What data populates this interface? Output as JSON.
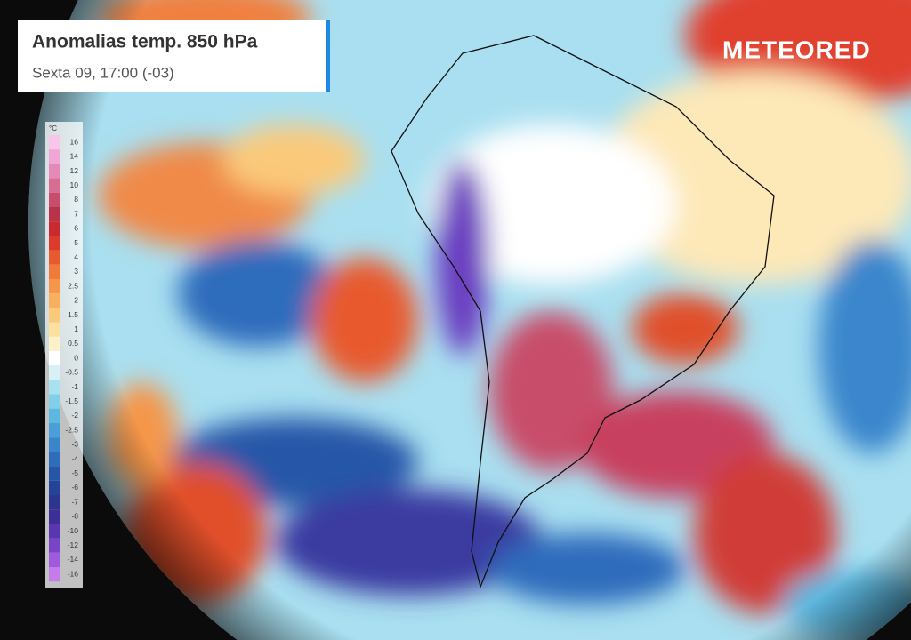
{
  "header": {
    "title": "Anomalias temp. 850 hPa",
    "subtitle": "Sexta 09, 17:00 (-03)"
  },
  "brand": "METEORED",
  "legend": {
    "unit": "°C",
    "steps": [
      {
        "value": 16,
        "color": "#f7c6e8"
      },
      {
        "value": 14,
        "color": "#f0a6d6"
      },
      {
        "value": 12,
        "color": "#e589b8"
      },
      {
        "value": 10,
        "color": "#d96c93"
      },
      {
        "value": 8,
        "color": "#c84d6b"
      },
      {
        "value": 7,
        "color": "#b8324a"
      },
      {
        "value": 6,
        "color": "#c82a30"
      },
      {
        "value": 5,
        "color": "#dc3a2a"
      },
      {
        "value": 4,
        "color": "#e85a2e"
      },
      {
        "value": 3,
        "color": "#f07a3a"
      },
      {
        "value": 2.5,
        "color": "#f5964a"
      },
      {
        "value": 2,
        "color": "#f8b060"
      },
      {
        "value": 1.5,
        "color": "#fbc97a"
      },
      {
        "value": 1,
        "color": "#fde0a0"
      },
      {
        "value": 0.5,
        "color": "#fef0c8"
      },
      {
        "value": 0,
        "color": "#ffffff"
      },
      {
        "value": -0.5,
        "color": "#d6f2f6"
      },
      {
        "value": -1,
        "color": "#a8e2ee"
      },
      {
        "value": -1.5,
        "color": "#82d0e8"
      },
      {
        "value": -2,
        "color": "#5cb8e0"
      },
      {
        "value": -2.5,
        "color": "#4a9fd8"
      },
      {
        "value": -3,
        "color": "#3a86cc"
      },
      {
        "value": -4,
        "color": "#2e6cbc"
      },
      {
        "value": -5,
        "color": "#2656a8"
      },
      {
        "value": -6,
        "color": "#24449a"
      },
      {
        "value": -7,
        "color": "#2c3690"
      },
      {
        "value": -8,
        "color": "#3e2e98"
      },
      {
        "value": -10,
        "color": "#5a36b0"
      },
      {
        "value": -12,
        "color": "#7a44c8"
      },
      {
        "value": -14,
        "color": "#a05ade"
      },
      {
        "value": -16,
        "color": "#c47cec"
      }
    ]
  }
}
